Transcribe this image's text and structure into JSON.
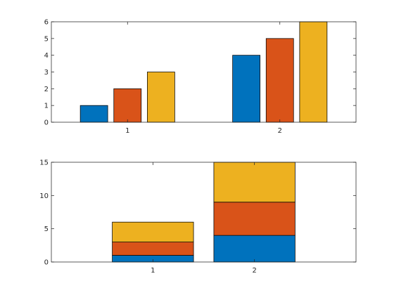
{
  "chart_data": [
    {
      "type": "bar",
      "mode": "grouped",
      "categories": [
        "1",
        "2"
      ],
      "series": [
        {
          "values": [
            1,
            4
          ],
          "color": "#0072BD"
        },
        {
          "values": [
            2,
            5
          ],
          "color": "#D95319"
        },
        {
          "values": [
            3,
            6
          ],
          "color": "#EDB120"
        }
      ],
      "xlim": [
        0.5,
        2.5
      ],
      "ylim": [
        0,
        6
      ],
      "yticks": [
        0,
        1,
        2,
        3,
        4,
        5,
        6
      ],
      "grid": false
    },
    {
      "type": "bar",
      "mode": "stacked",
      "categories": [
        "1",
        "2"
      ],
      "series": [
        {
          "values": [
            1,
            4
          ],
          "color": "#0072BD"
        },
        {
          "values": [
            2,
            5
          ],
          "color": "#D95319"
        },
        {
          "values": [
            3,
            6
          ],
          "color": "#EDB120"
        }
      ],
      "xlim": [
        0,
        3
      ],
      "ylim": [
        0,
        15
      ],
      "yticks": [
        0,
        5,
        10,
        15
      ],
      "grid": false
    }
  ]
}
